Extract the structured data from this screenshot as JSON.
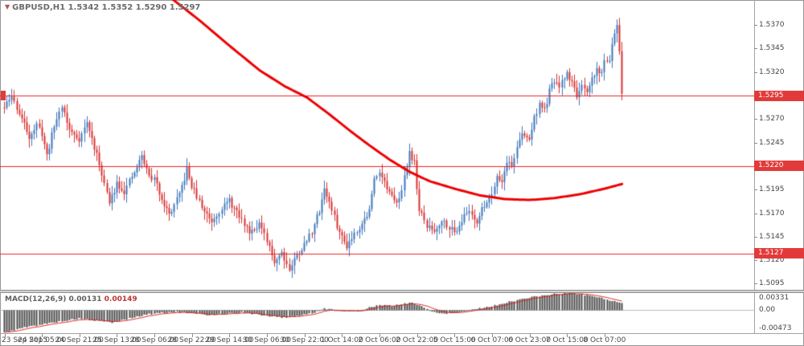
{
  "header": {
    "symbol": "GBPUSD,H1",
    "ohlc": "1.5342 1.5352 1.5290 1.5297"
  },
  "macd_panel": {
    "name": "MACD(12,26,9)",
    "value": "0.00131",
    "signal_value": "0.00149",
    "axis": [
      {
        "text": "0.00331",
        "value": 0.00331
      },
      {
        "text": "0.00",
        "value": 0
      },
      {
        "text": "-0.00473",
        "value": -0.00473
      }
    ]
  },
  "price_axis": {
    "labels": [
      "1.5370",
      "1.5345",
      "1.5320",
      "1.5295",
      "1.5270",
      "1.5245",
      "1.5220",
      "1.5195",
      "1.5170",
      "1.5145",
      "1.5120",
      "1.5095"
    ],
    "tags": [
      {
        "text": "1.5295",
        "price": 1.5295
      },
      {
        "text": "1.5220",
        "price": 1.522
      },
      {
        "text": "1.5127",
        "price": 1.5127
      }
    ]
  },
  "time_axis": {
    "labels": [
      "23 Sep 2015",
      "24 Sep 05:00",
      "24 Sep 21:00",
      "25 Sep 13:00",
      "28 Sep 06:00",
      "28 Sep 22:00",
      "29 Sep 14:00",
      "30 Sep 06:00",
      "30 Sep 22:00",
      "1 Oct 14:00",
      "2 Oct 06:00",
      "2 Oct 22:00",
      "5 Oct 15:00",
      "6 Oct 07:00",
      "6 Oct 23:00",
      "7 Oct 15:00",
      "8 Oct 07:00"
    ]
  },
  "chart_data": {
    "type": "candlestick",
    "symbol": "GBPUSD",
    "timeframe": "H1",
    "bars": 248,
    "price_range": [
      1.50885,
      1.53966
    ],
    "levels": [
      1.5295,
      1.522,
      1.5127
    ],
    "last_bar": {
      "open": 1.5342,
      "high": 1.5352,
      "low": 1.529,
      "close": 1.5297
    },
    "colors": {
      "up": "#3f77bc",
      "down": "#d93030",
      "ma": "#ee0000",
      "level": "#f02020",
      "hist": "#4a4a4a",
      "signal": "#dd2222",
      "tag_bg": "#e23a3a",
      "tag_text": "#ffffff"
    },
    "price_anchors": [
      [
        0,
        1.5282
      ],
      [
        3,
        1.5294
      ],
      [
        7,
        1.527
      ],
      [
        10,
        1.5252
      ],
      [
        13,
        1.5263
      ],
      [
        15,
        1.5255
      ],
      [
        17,
        1.5231
      ],
      [
        20,
        1.5263
      ],
      [
        23,
        1.5285
      ],
      [
        26,
        1.5258
      ],
      [
        30,
        1.5249
      ],
      [
        33,
        1.5266
      ],
      [
        36,
        1.524
      ],
      [
        39,
        1.5213
      ],
      [
        42,
        1.518
      ],
      [
        45,
        1.5203
      ],
      [
        48,
        1.5193
      ],
      [
        52,
        1.5213
      ],
      [
        55,
        1.5231
      ],
      [
        58,
        1.5209
      ],
      [
        60,
        1.5206
      ],
      [
        63,
        1.5186
      ],
      [
        66,
        1.5168
      ],
      [
        70,
        1.5189
      ],
      [
        73,
        1.5216
      ],
      [
        75,
        1.5199
      ],
      [
        79,
        1.5176
      ],
      [
        83,
        1.5162
      ],
      [
        87,
        1.5176
      ],
      [
        90,
        1.5183
      ],
      [
        94,
        1.5166
      ],
      [
        98,
        1.5151
      ],
      [
        102,
        1.5159
      ],
      [
        105,
        1.5139
      ],
      [
        108,
        1.5119
      ],
      [
        111,
        1.5129
      ],
      [
        114,
        1.511
      ],
      [
        117,
        1.5126
      ],
      [
        120,
        1.5136
      ],
      [
        123,
        1.5151
      ],
      [
        126,
        1.5173
      ],
      [
        128,
        1.5197
      ],
      [
        131,
        1.5173
      ],
      [
        134,
        1.5149
      ],
      [
        137,
        1.5136
      ],
      [
        140,
        1.5149
      ],
      [
        143,
        1.5159
      ],
      [
        146,
        1.5173
      ],
      [
        148,
        1.5206
      ],
      [
        150,
        1.5216
      ],
      [
        153,
        1.5196
      ],
      [
        156,
        1.5181
      ],
      [
        159,
        1.5193
      ],
      [
        162,
        1.5236
      ],
      [
        164,
        1.5223
      ],
      [
        166,
        1.5173
      ],
      [
        169,
        1.5156
      ],
      [
        172,
        1.5151
      ],
      [
        175,
        1.5163
      ],
      [
        178,
        1.5156
      ],
      [
        180,
        1.5149
      ],
      [
        183,
        1.5163
      ],
      [
        186,
        1.5173
      ],
      [
        189,
        1.5161
      ],
      [
        192,
        1.5179
      ],
      [
        195,
        1.5191
      ],
      [
        197,
        1.5211
      ],
      [
        199,
        1.5203
      ],
      [
        201,
        1.5226
      ],
      [
        203,
        1.5219
      ],
      [
        205,
        1.5241
      ],
      [
        207,
        1.5253
      ],
      [
        210,
        1.5249
      ],
      [
        212,
        1.5271
      ],
      [
        214,
        1.5286
      ],
      [
        216,
        1.5279
      ],
      [
        218,
        1.5299
      ],
      [
        220,
        1.5311
      ],
      [
        222,
        1.5303
      ],
      [
        225,
        1.5319
      ],
      [
        227,
        1.5309
      ],
      [
        229,
        1.5296
      ],
      [
        231,
        1.5303
      ],
      [
        233,
        1.5296
      ],
      [
        235,
        1.5313
      ],
      [
        237,
        1.5323
      ],
      [
        239,
        1.5319
      ],
      [
        240,
        1.5331
      ],
      [
        242,
        1.5335
      ],
      [
        243,
        1.5348
      ],
      [
        244,
        1.5361
      ],
      [
        245,
        1.537
      ],
      [
        246,
        1.5342
      ],
      [
        247,
        1.5297
      ]
    ],
    "exact": {
      "245": {
        "h": 1.5376
      },
      "247": {
        "o": 1.5342,
        "h": 1.5352,
        "l": 1.529,
        "c": 1.5297
      }
    },
    "ma_anchors": [
      [
        58,
        1.5425
      ],
      [
        66,
        1.54
      ],
      [
        78,
        1.5375
      ],
      [
        90,
        1.5348
      ],
      [
        102,
        1.5322
      ],
      [
        112,
        1.5305
      ],
      [
        121,
        1.5293
      ],
      [
        130,
        1.5275
      ],
      [
        138,
        1.5258
      ],
      [
        146,
        1.5242
      ],
      [
        154,
        1.5227
      ],
      [
        162,
        1.5214
      ],
      [
        170,
        1.5204
      ],
      [
        180,
        1.5196
      ],
      [
        190,
        1.5189
      ],
      [
        200,
        1.5185
      ],
      [
        210,
        1.5184
      ],
      [
        220,
        1.5186
      ],
      [
        230,
        1.519
      ],
      [
        240,
        1.5196
      ],
      [
        247,
        1.5201
      ]
    ],
    "macd_range": [
      -0.00473,
      0.00331
    ],
    "macd_anchors": [
      [
        0,
        -0.0046
      ],
      [
        8,
        -0.0036
      ],
      [
        15,
        -0.003
      ],
      [
        22,
        -0.0024
      ],
      [
        30,
        -0.0018
      ],
      [
        36,
        -0.0022
      ],
      [
        43,
        -0.0026
      ],
      [
        50,
        -0.0018
      ],
      [
        57,
        -0.001
      ],
      [
        63,
        -0.0006
      ],
      [
        70,
        -0.0005
      ],
      [
        75,
        -0.0008
      ],
      [
        82,
        -0.0011
      ],
      [
        88,
        -0.0008
      ],
      [
        95,
        -0.0006
      ],
      [
        100,
        -0.0009
      ],
      [
        106,
        -0.0013
      ],
      [
        112,
        -0.0016
      ],
      [
        118,
        -0.0012
      ],
      [
        124,
        -0.0006
      ],
      [
        128,
        0.0002
      ],
      [
        132,
        0.0
      ],
      [
        136,
        -0.0004
      ],
      [
        141,
        -0.0003
      ],
      [
        146,
        0.0004
      ],
      [
        150,
        0.0009
      ],
      [
        155,
        0.0007
      ],
      [
        160,
        0.0012
      ],
      [
        163,
        0.0014
      ],
      [
        167,
        0.0006
      ],
      [
        171,
        -0.0004
      ],
      [
        176,
        -0.0008
      ],
      [
        180,
        -0.0007
      ],
      [
        184,
        -0.0003
      ],
      [
        188,
        0.0001
      ],
      [
        192,
        0.0004
      ],
      [
        196,
        0.0008
      ],
      [
        200,
        0.0013
      ],
      [
        205,
        0.0019
      ],
      [
        210,
        0.0024
      ],
      [
        215,
        0.0028
      ],
      [
        220,
        0.0031
      ],
      [
        225,
        0.0033
      ],
      [
        230,
        0.0031
      ],
      [
        234,
        0.0028
      ],
      [
        238,
        0.0024
      ],
      [
        242,
        0.0019
      ],
      [
        245,
        0.0015
      ],
      [
        247,
        0.00131
      ]
    ]
  }
}
